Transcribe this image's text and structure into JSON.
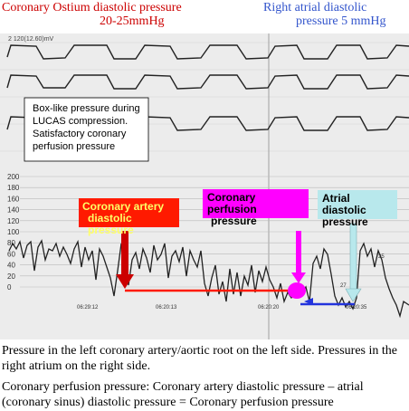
{
  "headers": {
    "left_line1": "Coronary Ostium diastolic pressure",
    "left_line2": "20-25mmHg",
    "right_line1": "Right atrial diastolic",
    "right_line2": "pressure 5 mmHg"
  },
  "tracing": {
    "scale_top_label": "2 120(12.60)mV",
    "note_box": [
      "Box-like pressure during",
      "LUCAS compression.",
      "Satisfactory coronary",
      "perfusion pressure"
    ],
    "y_ticks": [
      "200",
      "180",
      "160",
      "140",
      "120",
      "100",
      "80",
      "60",
      "40",
      "20",
      "0"
    ],
    "timestamps": [
      "06:29:12",
      "06:20:13",
      "06:20:20",
      "06:20:35"
    ],
    "small_labels": [
      "25",
      "27"
    ],
    "colors": {
      "red": "#ff1a00",
      "magenta": "#ff00ff",
      "light_blue": "#b8e8ec",
      "blue": "#2233dd"
    }
  },
  "callouts": {
    "coronary_artery": [
      "Coronary artery",
      "diastolic pressure"
    ],
    "coronary_perfusion": [
      "Coronary perfusion",
      "pressure"
    ],
    "atrial": [
      "Atrial diastolic",
      "pressure"
    ]
  },
  "caption": {
    "p1": "Pressure in the left coronary artery/aortic root on the left side. Pressures in the right atrium on the right side.",
    "p2": "Coronary perfusion pressure: Coronary artery diastolic pressure – atrial (coronary sinus) diastolic pressure = Coronary perfusion pressure"
  }
}
